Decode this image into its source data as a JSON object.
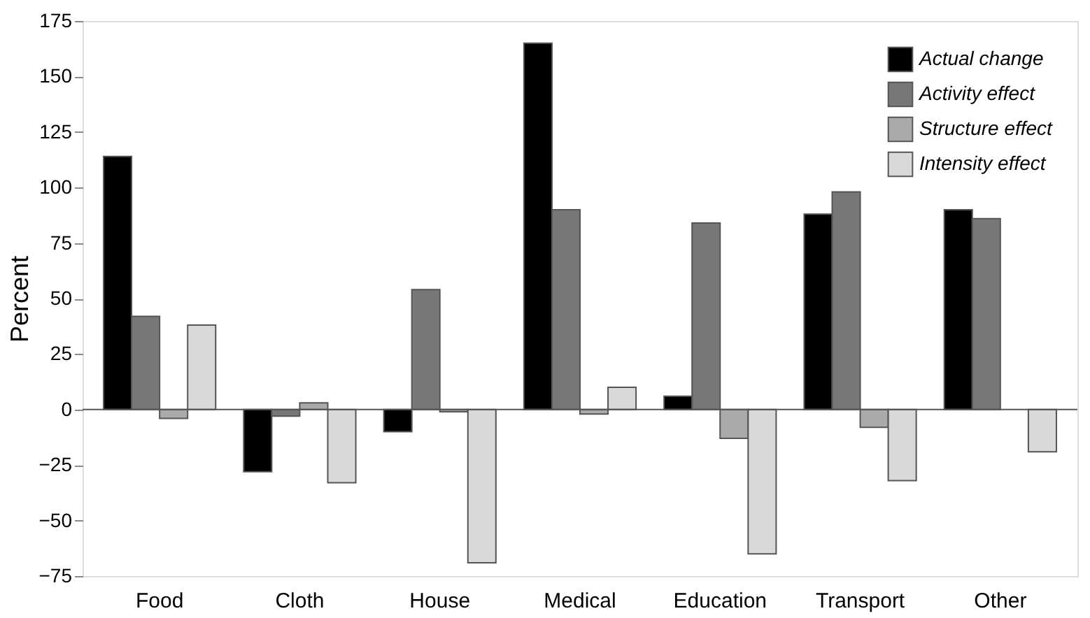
{
  "chart_data": {
    "type": "bar",
    "ylabel": "Percent",
    "categories": [
      "Food",
      "Cloth",
      "House",
      "Medical",
      "Education",
      "Transport",
      "Other"
    ],
    "series": [
      {
        "name": "Actual change",
        "color": "#000000",
        "values": [
          114,
          -28,
          -10,
          165,
          6,
          88,
          90
        ]
      },
      {
        "name": "Activity effect",
        "color": "#777777",
        "values": [
          42,
          -3,
          54,
          90,
          84,
          98,
          86
        ]
      },
      {
        "name": "Structure effect",
        "color": "#aaaaaa",
        "values": [
          -4,
          3,
          -1,
          -2,
          -13,
          -8,
          null
        ]
      },
      {
        "name": "Intensity effect",
        "color": "#d9d9d9",
        "values": [
          38,
          -33,
          -69,
          10,
          -65,
          -32,
          -19
        ]
      }
    ],
    "ylim": [
      -75,
      175
    ],
    "yticks": [
      -75,
      -50,
      -25,
      0,
      25,
      50,
      75,
      100,
      125,
      150,
      175
    ],
    "ref_lines": [
      {
        "axis": "y",
        "value": 0,
        "color": "#555555"
      }
    ],
    "grid": false,
    "legend": "top right"
  }
}
